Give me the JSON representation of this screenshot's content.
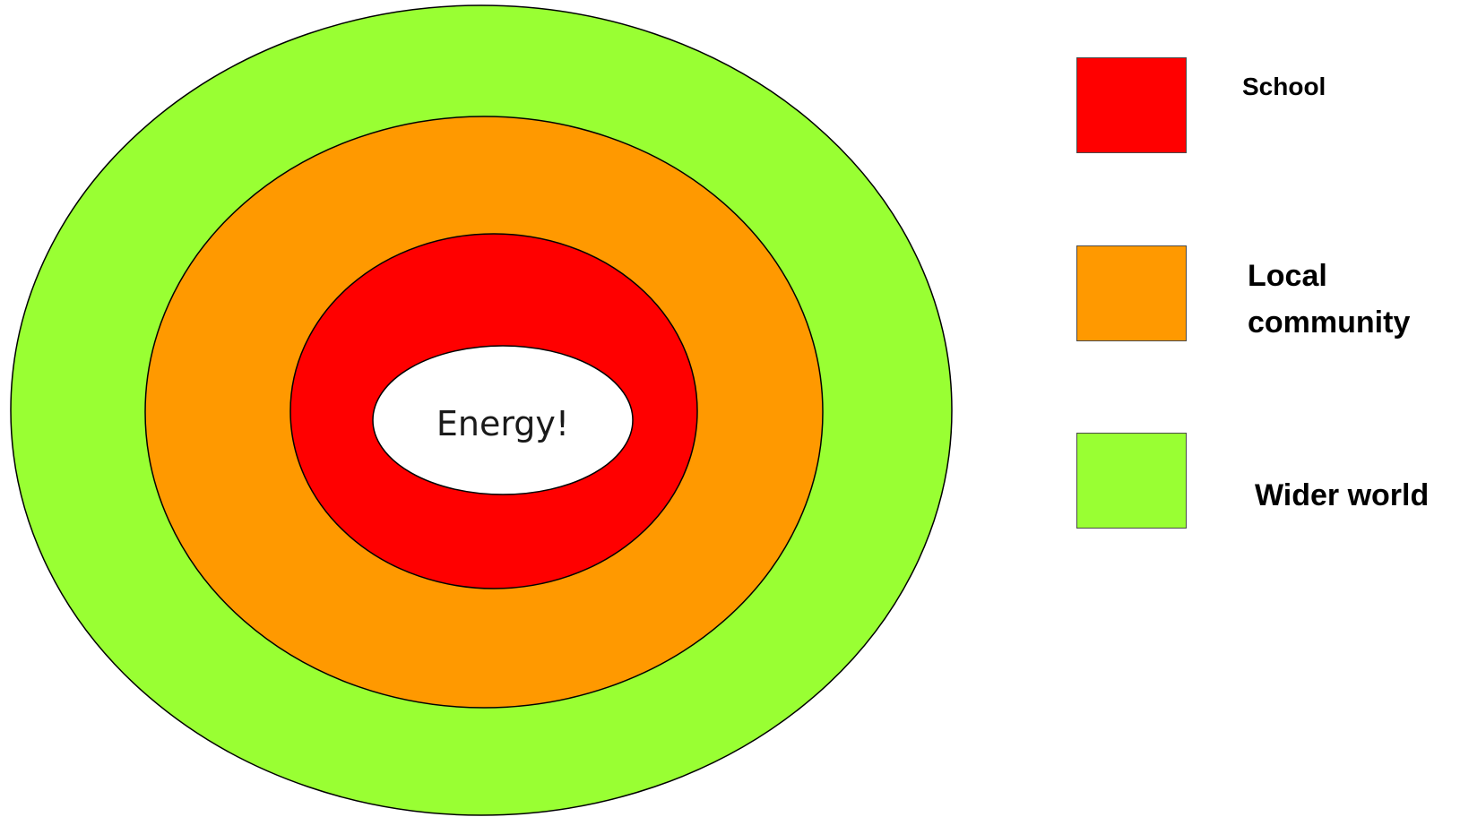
{
  "center_label": "Energy!",
  "rings": [
    {
      "name": "Wider world",
      "color": "#99FF33"
    },
    {
      "name": "Local community",
      "color": "#FF9900"
    },
    {
      "name": "School",
      "color": "#FF0000"
    }
  ],
  "center_color": "#FFFFFF",
  "legend": {
    "school": {
      "label": "School",
      "color": "#FF0000"
    },
    "local": {
      "label_line1": "Local",
      "label_line2": "community",
      "color": "#FF9900"
    },
    "wider": {
      "label": "Wider world",
      "color": "#99FF33"
    }
  }
}
